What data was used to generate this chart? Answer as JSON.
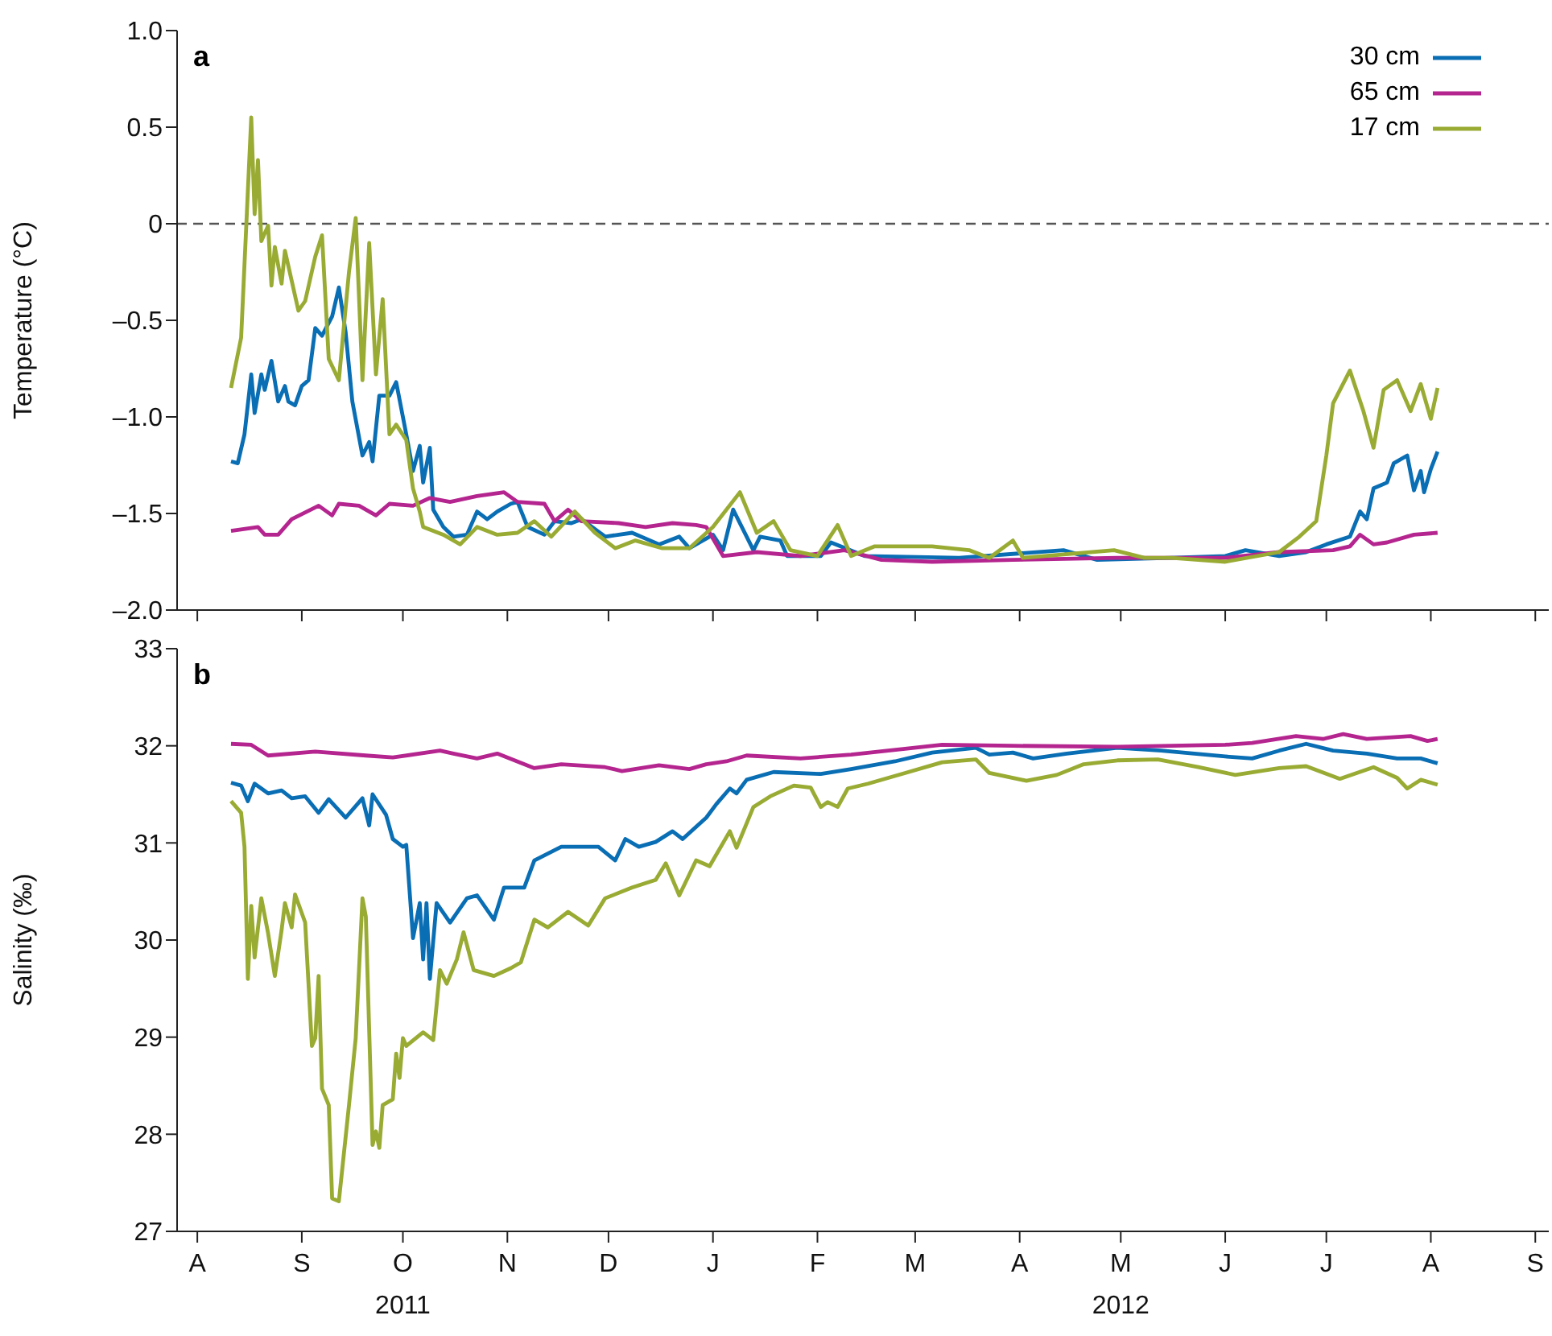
{
  "chart_data": [
    {
      "type": "line",
      "title": "a",
      "ylabel": "Temperature (°C)",
      "legend": "top right",
      "marker": "none",
      "line_style": "solid",
      "tick_labels": "y",
      "xlim": [
        "2011-07-26",
        "2012-09-05"
      ],
      "xticks": [
        {
          "value": "2011-08-01",
          "label": null
        },
        {
          "value": "2011-09-01",
          "label": null
        },
        {
          "value": "2011-10-01",
          "label": null
        },
        {
          "value": "2011-11-01",
          "label": null
        },
        {
          "value": "2011-12-01",
          "label": null
        },
        {
          "value": "2012-01-01",
          "label": null
        },
        {
          "value": "2012-02-01",
          "label": null
        },
        {
          "value": "2012-03-01",
          "label": null
        },
        {
          "value": "2012-04-01",
          "label": null
        },
        {
          "value": "2012-05-01",
          "label": null
        },
        {
          "value": "2012-06-01",
          "label": null
        },
        {
          "value": "2012-07-01",
          "label": null
        },
        {
          "value": "2012-08-01",
          "label": null
        },
        {
          "value": "2012-09-01",
          "label": null
        }
      ],
      "ylim": [
        -2,
        1
      ],
      "yticks": [
        {
          "value": -2,
          "label": "–2.0"
        },
        {
          "value": -1.5,
          "label": "–1.5"
        },
        {
          "value": -1,
          "label": "–1.0"
        },
        {
          "value": -0.5,
          "label": "–0.5"
        },
        0,
        0.5,
        {
          "value": 1,
          "label": "1.0"
        }
      ],
      "ref_lines": [
        {
          "axis": "y",
          "value": 0,
          "color": "#555555",
          "line_style": "dashed"
        }
      ],
      "series": [
        {
          "name": "30 cm",
          "color": "#0a6eb4",
          "x": [
            "2011-08-11",
            "2011-08-13",
            "2011-08-15",
            "2011-08-17",
            "2011-08-18",
            "2011-08-20",
            "2011-08-21",
            "2011-08-23",
            "2011-08-25",
            "2011-08-27",
            "2011-08-28",
            "2011-08-30",
            "2011-09-01",
            "2011-09-03",
            "2011-09-05",
            "2011-09-07",
            "2011-09-10",
            "2011-09-12",
            "2011-09-14",
            "2011-09-16",
            "2011-09-19",
            "2011-09-21",
            "2011-09-22",
            "2011-09-24",
            "2011-09-27",
            "2011-09-29",
            "2011-10-02",
            "2011-10-04",
            "2011-10-06",
            "2011-10-07",
            "2011-10-09",
            "2011-10-10",
            "2011-10-13",
            "2011-10-16",
            "2011-10-20",
            "2011-10-23",
            "2011-10-26",
            "2011-10-29",
            "2011-11-02",
            "2011-11-04",
            "2011-11-07",
            "2011-11-12",
            "2011-11-15",
            "2011-11-20",
            "2011-11-23",
            "2011-11-30",
            "2011-12-08",
            "2011-12-16",
            "2011-12-22",
            "2011-12-25",
            "2012-01-01",
            "2012-01-04",
            "2012-01-07",
            "2012-01-13",
            "2012-01-15",
            "2012-01-21",
            "2012-01-23",
            "2012-02-02",
            "2012-02-05",
            "2012-02-15",
            "2012-03-14",
            "2012-04-14",
            "2012-04-24",
            "2012-05-16",
            "2012-06-01",
            "2012-06-07",
            "2012-06-17",
            "2012-06-25",
            "2012-07-01",
            "2012-07-08",
            "2012-07-11",
            "2012-07-13",
            "2012-07-15",
            "2012-07-19",
            "2012-07-21",
            "2012-07-25",
            "2012-07-27",
            "2012-07-29",
            "2012-07-30",
            "2012-08-01",
            "2012-08-03"
          ],
          "values": [
            -1.23,
            -1.24,
            -1.09,
            -0.78,
            -0.98,
            -0.78,
            -0.86,
            -0.71,
            -0.92,
            -0.84,
            -0.92,
            -0.94,
            -0.84,
            -0.81,
            -0.54,
            -0.58,
            -0.48,
            -0.33,
            -0.56,
            -0.92,
            -1.2,
            -1.13,
            -1.23,
            -0.89,
            -0.89,
            -0.82,
            -1.09,
            -1.28,
            -1.15,
            -1.34,
            -1.16,
            -1.48,
            -1.57,
            -1.62,
            -1.61,
            -1.49,
            -1.53,
            -1.49,
            -1.45,
            -1.44,
            -1.57,
            -1.61,
            -1.54,
            -1.55,
            -1.53,
            -1.62,
            -1.6,
            -1.66,
            -1.62,
            -1.68,
            -1.61,
            -1.69,
            -1.48,
            -1.69,
            -1.62,
            -1.64,
            -1.72,
            -1.72,
            -1.65,
            -1.72,
            -1.73,
            -1.69,
            -1.74,
            -1.73,
            -1.72,
            -1.69,
            -1.72,
            -1.7,
            -1.66,
            -1.62,
            -1.49,
            -1.53,
            -1.37,
            -1.34,
            -1.24,
            -1.2,
            -1.38,
            -1.28,
            -1.39,
            -1.27,
            -1.18
          ]
        },
        {
          "name": "65 cm",
          "color": "#b5258f",
          "x": [
            "2011-08-11",
            "2011-08-19",
            "2011-08-21",
            "2011-08-25",
            "2011-08-29",
            "2011-09-06",
            "2011-09-10",
            "2011-09-12",
            "2011-09-18",
            "2011-09-23",
            "2011-09-27",
            "2011-10-04",
            "2011-10-09",
            "2011-10-15",
            "2011-10-23",
            "2011-10-31",
            "2011-11-04",
            "2011-11-12",
            "2011-11-15",
            "2011-11-19",
            "2011-11-23",
            "2011-12-04",
            "2011-12-12",
            "2011-12-20",
            "2011-12-27",
            "2011-12-30",
            "2012-01-04",
            "2012-01-14",
            "2012-01-27",
            "2012-02-09",
            "2012-02-20",
            "2012-03-06",
            "2012-03-30",
            "2012-04-30",
            "2012-06-01",
            "2012-06-17",
            "2012-07-03",
            "2012-07-08",
            "2012-07-11",
            "2012-07-15",
            "2012-07-19",
            "2012-07-27",
            "2012-08-03"
          ],
          "values": [
            -1.59,
            -1.57,
            -1.61,
            -1.61,
            -1.53,
            -1.46,
            -1.51,
            -1.45,
            -1.46,
            -1.51,
            -1.45,
            -1.46,
            -1.42,
            -1.44,
            -1.41,
            -1.39,
            -1.44,
            -1.45,
            -1.54,
            -1.48,
            -1.54,
            -1.55,
            -1.57,
            -1.55,
            -1.56,
            -1.57,
            -1.72,
            -1.7,
            -1.72,
            -1.69,
            -1.74,
            -1.75,
            -1.74,
            -1.73,
            -1.73,
            -1.7,
            -1.69,
            -1.67,
            -1.61,
            -1.66,
            -1.65,
            -1.61,
            -1.6
          ]
        },
        {
          "name": "17 cm",
          "color": "#9aab34",
          "x": [
            "2011-08-11",
            "2011-08-14",
            "2011-08-17",
            "2011-08-18",
            "2011-08-19",
            "2011-08-20",
            "2011-08-22",
            "2011-08-23",
            "2011-08-24",
            "2011-08-26",
            "2011-08-27",
            "2011-08-31",
            "2011-09-02",
            "2011-09-05",
            "2011-09-07",
            "2011-09-09",
            "2011-09-12",
            "2011-09-15",
            "2011-09-17",
            "2011-09-19",
            "2011-09-21",
            "2011-09-23",
            "2011-09-25",
            "2011-09-27",
            "2011-09-29",
            "2011-10-02",
            "2011-10-04",
            "2011-10-06",
            "2011-10-07",
            "2011-10-13",
            "2011-10-18",
            "2011-10-23",
            "2011-10-29",
            "2011-11-04",
            "2011-11-09",
            "2011-11-14",
            "2011-11-21",
            "2011-11-27",
            "2011-12-03",
            "2011-12-09",
            "2011-12-17",
            "2011-12-25",
            "2012-01-01",
            "2012-01-09",
            "2012-01-14",
            "2012-01-19",
            "2012-01-24",
            "2012-02-01",
            "2012-02-07",
            "2012-02-11",
            "2012-02-18",
            "2012-03-06",
            "2012-03-17",
            "2012-03-23",
            "2012-03-30",
            "2012-04-02",
            "2012-04-29",
            "2012-05-08",
            "2012-05-16",
            "2012-06-01",
            "2012-06-17",
            "2012-06-23",
            "2012-06-28",
            "2012-07-01",
            "2012-07-03",
            "2012-07-08",
            "2012-07-12",
            "2012-07-15",
            "2012-07-18",
            "2012-07-22",
            "2012-07-26",
            "2012-07-29",
            "2012-08-01",
            "2012-08-03"
          ],
          "values": [
            -0.85,
            -0.59,
            0.55,
            0.05,
            0.33,
            -0.09,
            -0.01,
            -0.32,
            -0.12,
            -0.31,
            -0.14,
            -0.45,
            -0.4,
            -0.17,
            -0.06,
            -0.7,
            -0.81,
            -0.25,
            0.03,
            -0.81,
            -0.1,
            -0.78,
            -0.39,
            -1.09,
            -1.04,
            -1.12,
            -1.37,
            -1.49,
            -1.57,
            -1.61,
            -1.66,
            -1.57,
            -1.61,
            -1.6,
            -1.54,
            -1.62,
            -1.49,
            -1.6,
            -1.68,
            -1.64,
            -1.68,
            -1.68,
            -1.57,
            -1.39,
            -1.6,
            -1.54,
            -1.69,
            -1.72,
            -1.56,
            -1.72,
            -1.67,
            -1.67,
            -1.69,
            -1.73,
            -1.64,
            -1.73,
            -1.69,
            -1.73,
            -1.73,
            -1.75,
            -1.7,
            -1.62,
            -1.54,
            -1.2,
            -0.93,
            -0.76,
            -0.97,
            -1.16,
            -0.86,
            -0.81,
            -0.97,
            -0.83,
            -1.01,
            -0.85
          ]
        }
      ]
    },
    {
      "type": "line",
      "title": "b",
      "ylabel": "Salinity (‰)",
      "marker": "none",
      "line_style": "solid",
      "xlim": [
        "2011-07-26",
        "2012-09-05"
      ],
      "xticks": [
        {
          "value": "2011-08-01",
          "label": "A"
        },
        {
          "value": "2011-09-01",
          "label": "S"
        },
        {
          "value": "2011-10-01",
          "label": "O\n2011"
        },
        {
          "value": "2011-11-01",
          "label": "N"
        },
        {
          "value": "2011-12-01",
          "label": "D"
        },
        {
          "value": "2012-01-01",
          "label": "J"
        },
        {
          "value": "2012-02-01",
          "label": "F"
        },
        {
          "value": "2012-03-01",
          "label": "M"
        },
        {
          "value": "2012-04-01",
          "label": "A"
        },
        {
          "value": "2012-05-01",
          "label": "M\n2012"
        },
        {
          "value": "2012-06-01",
          "label": "J"
        },
        {
          "value": "2012-07-01",
          "label": "J"
        },
        {
          "value": "2012-08-01",
          "label": "A"
        },
        {
          "value": "2012-09-01",
          "label": "S"
        }
      ],
      "ylim": [
        27,
        33
      ],
      "yticks": [
        27,
        28,
        29,
        30,
        31,
        32,
        33
      ],
      "series": [
        {
          "color": "#0a6eb4",
          "x": [
            "2011-08-11",
            "2011-08-14",
            "2011-08-16",
            "2011-08-18",
            "2011-08-22",
            "2011-08-26",
            "2011-08-29",
            "2011-09-02",
            "2011-09-06",
            "2011-09-09",
            "2011-09-14",
            "2011-09-19",
            "2011-09-21",
            "2011-09-22",
            "2011-09-26",
            "2011-09-28",
            "2011-10-01",
            "2011-10-02",
            "2011-10-04",
            "2011-10-06",
            "2011-10-07",
            "2011-10-08",
            "2011-10-09",
            "2011-10-11",
            "2011-10-15",
            "2011-10-20",
            "2011-10-23",
            "2011-10-28",
            "2011-10-31",
            "2011-11-06",
            "2011-11-09",
            "2011-11-17",
            "2011-11-28",
            "2011-12-03",
            "2011-12-06",
            "2011-12-10",
            "2011-12-15",
            "2011-12-20",
            "2011-12-23",
            "2011-12-30",
            "2012-01-02",
            "2012-01-06",
            "2012-01-08",
            "2012-01-11",
            "2012-01-19",
            "2012-02-02",
            "2012-02-11",
            "2012-02-24",
            "2012-03-06",
            "2012-03-19",
            "2012-03-23",
            "2012-03-30",
            "2012-04-05",
            "2012-04-15",
            "2012-04-30",
            "2012-05-13",
            "2012-06-01",
            "2012-06-09",
            "2012-06-17",
            "2012-06-25",
            "2012-07-03",
            "2012-07-13",
            "2012-07-22",
            "2012-07-29",
            "2012-08-03"
          ],
          "values": [
            31.62,
            31.59,
            31.43,
            31.61,
            31.51,
            31.54,
            31.46,
            31.48,
            31.31,
            31.45,
            31.26,
            31.46,
            31.18,
            31.5,
            31.29,
            31.04,
            30.96,
            30.98,
            30.02,
            30.38,
            29.8,
            30.38,
            29.6,
            30.38,
            30.18,
            30.43,
            30.46,
            30.21,
            30.54,
            30.54,
            30.82,
            30.96,
            30.96,
            30.82,
            31.04,
            30.96,
            31.01,
            31.12,
            31.04,
            31.26,
            31.4,
            31.56,
            31.51,
            31.65,
            31.73,
            31.71,
            31.76,
            31.84,
            31.93,
            31.98,
            31.91,
            31.93,
            31.87,
            31.92,
            31.98,
            31.95,
            31.89,
            31.87,
            31.95,
            32.02,
            31.95,
            31.92,
            31.87,
            31.87,
            31.82
          ]
        },
        {
          "color": "#b5258f",
          "x": [
            "2011-08-11",
            "2011-08-17",
            "2011-08-22",
            "2011-09-05",
            "2011-09-20",
            "2011-09-28",
            "2011-10-12",
            "2011-10-16",
            "2011-10-23",
            "2011-10-29",
            "2011-11-09",
            "2011-11-17",
            "2011-11-30",
            "2011-12-05",
            "2011-12-16",
            "2011-12-25",
            "2011-12-30",
            "2012-01-05",
            "2012-01-11",
            "2012-01-27",
            "2012-02-11",
            "2012-02-27",
            "2012-03-09",
            "2012-03-30",
            "2012-04-30",
            "2012-05-16",
            "2012-06-01",
            "2012-06-09",
            "2012-06-22",
            "2012-06-30",
            "2012-07-06",
            "2012-07-13",
            "2012-07-26",
            "2012-07-31",
            "2012-08-03"
          ],
          "values": [
            32.02,
            32.01,
            31.9,
            31.94,
            31.9,
            31.88,
            31.95,
            31.92,
            31.87,
            31.92,
            31.77,
            31.81,
            31.78,
            31.74,
            31.8,
            31.76,
            31.81,
            31.84,
            31.9,
            31.87,
            31.91,
            31.97,
            32.01,
            32.0,
            31.99,
            32.0,
            32.01,
            32.03,
            32.1,
            32.07,
            32.12,
            32.07,
            32.1,
            32.05,
            32.07
          ]
        },
        {
          "color": "#9aab34",
          "x": [
            "2011-08-11",
            "2011-08-14",
            "2011-08-15",
            "2011-08-16",
            "2011-08-17",
            "2011-08-18",
            "2011-08-20",
            "2011-08-22",
            "2011-08-24",
            "2011-08-26",
            "2011-08-27",
            "2011-08-29",
            "2011-08-30",
            "2011-09-02",
            "2011-09-04",
            "2011-09-05",
            "2011-09-06",
            "2011-09-07",
            "2011-09-09",
            "2011-09-10",
            "2011-09-12",
            "2011-09-15",
            "2011-09-17",
            "2011-09-19",
            "2011-09-20",
            "2011-09-22",
            "2011-09-23",
            "2011-09-24",
            "2011-09-25",
            "2011-09-28",
            "2011-09-29",
            "2011-09-30",
            "2011-10-01",
            "2011-10-02",
            "2011-10-07",
            "2011-10-10",
            "2011-10-12",
            "2011-10-14",
            "2011-10-17",
            "2011-10-19",
            "2011-10-22",
            "2011-10-28",
            "2011-11-02",
            "2011-11-05",
            "2011-11-09",
            "2011-11-13",
            "2011-11-19",
            "2011-11-25",
            "2011-11-30",
            "2011-12-08",
            "2011-12-15",
            "2011-12-18",
            "2011-12-22",
            "2011-12-27",
            "2011-12-31",
            "2012-01-06",
            "2012-01-08",
            "2012-01-13",
            "2012-01-18",
            "2012-01-25",
            "2012-01-30",
            "2012-02-02",
            "2012-02-04",
            "2012-02-07",
            "2012-02-10",
            "2012-02-16",
            "2012-02-27",
            "2012-03-09",
            "2012-03-19",
            "2012-03-23",
            "2012-04-03",
            "2012-04-12",
            "2012-04-20",
            "2012-04-30",
            "2012-05-12",
            "2012-05-24",
            "2012-06-04",
            "2012-06-17",
            "2012-06-25",
            "2012-07-05",
            "2012-07-15",
            "2012-07-22",
            "2012-07-25",
            "2012-07-29",
            "2012-08-03"
          ],
          "values": [
            31.43,
            31.31,
            30.96,
            29.6,
            30.35,
            29.82,
            30.43,
            30.07,
            29.63,
            30.1,
            30.38,
            30.13,
            30.47,
            30.18,
            28.91,
            28.99,
            29.63,
            28.47,
            28.3,
            27.34,
            27.31,
            28.3,
            28.99,
            30.43,
            30.24,
            27.89,
            28.03,
            27.86,
            28.3,
            28.36,
            28.83,
            28.58,
            28.99,
            28.91,
            29.05,
            28.97,
            29.69,
            29.55,
            29.8,
            30.08,
            29.69,
            29.63,
            29.71,
            29.77,
            30.21,
            30.13,
            30.29,
            30.15,
            30.43,
            30.54,
            30.62,
            30.79,
            30.46,
            30.82,
            30.76,
            31.12,
            30.95,
            31.37,
            31.48,
            31.59,
            31.57,
            31.37,
            31.42,
            31.37,
            31.56,
            31.61,
            31.72,
            31.83,
            31.86,
            31.72,
            31.64,
            31.7,
            31.81,
            31.85,
            31.86,
            31.78,
            31.7,
            31.77,
            31.79,
            31.66,
            31.78,
            31.67,
            31.56,
            31.65,
            31.6
          ]
        }
      ]
    }
  ]
}
